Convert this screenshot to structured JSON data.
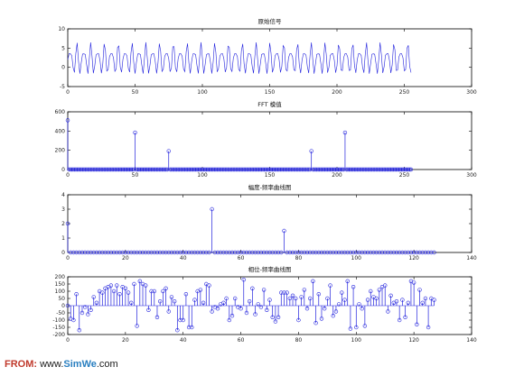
{
  "colors": {
    "signal": "#2222dd",
    "axis": "#000000",
    "frame": "#000000"
  },
  "watermark": {
    "prefix": "FROM:",
    "www": "www.",
    "site": "SimWe",
    "suffix": ".com"
  },
  "chart_data": [
    {
      "id": "p1",
      "type": "line",
      "title": "原始信号",
      "xlim": [
        0,
        300
      ],
      "ylim": [
        -5,
        10
      ],
      "xticks": [
        0,
        50,
        100,
        150,
        200,
        250,
        300
      ],
      "yticks": [
        -5,
        0,
        5,
        10
      ],
      "signal": {
        "n": 256,
        "offset": 2,
        "components": [
          {
            "amp": 3,
            "freq": 50,
            "phase": -0.5236
          },
          {
            "amp": 1.5,
            "freq": 75,
            "phase": 1.5708
          }
        ],
        "fs": 256
      }
    },
    {
      "id": "p2",
      "type": "stem",
      "title": "FFT 模值",
      "xlim": [
        0,
        300
      ],
      "ylim": [
        0,
        600
      ],
      "xticks": [
        0,
        50,
        100,
        150,
        200,
        250,
        300
      ],
      "yticks": [
        0,
        200,
        400,
        600
      ],
      "x_start": 0,
      "n": 256,
      "baseline": 0,
      "peaks": [
        {
          "x": 0,
          "y": 512
        },
        {
          "x": 50,
          "y": 384
        },
        {
          "x": 75,
          "y": 192
        },
        {
          "x": 181,
          "y": 192
        },
        {
          "x": 206,
          "y": 384
        }
      ]
    },
    {
      "id": "p3",
      "type": "stem",
      "title": "幅度-频率曲线图",
      "xlim": [
        0,
        140
      ],
      "ylim": [
        0,
        4
      ],
      "xticks": [
        0,
        20,
        40,
        60,
        80,
        100,
        120,
        140
      ],
      "yticks": [
        0,
        1,
        2,
        3,
        4
      ],
      "x_start": 0,
      "n": 128,
      "baseline": 0,
      "peaks": [
        {
          "x": 0,
          "y": 2
        },
        {
          "x": 50,
          "y": 3
        },
        {
          "x": 75,
          "y": 1.5
        }
      ]
    },
    {
      "id": "p4",
      "type": "stem",
      "title": "相位-频率曲线图",
      "xlim": [
        0,
        140
      ],
      "ylim": [
        -200,
        200
      ],
      "xticks": [
        0,
        20,
        40,
        60,
        80,
        100,
        120,
        140
      ],
      "yticks": [
        -200,
        -150,
        -100,
        -50,
        0,
        50,
        100,
        150,
        200
      ],
      "x_start": 0,
      "baseline": 0,
      "values": [
        0,
        -90,
        -100,
        80,
        -170,
        -50,
        -10,
        -60,
        -30,
        60,
        20,
        100,
        90,
        120,
        130,
        140,
        100,
        140,
        80,
        130,
        120,
        90,
        20,
        150,
        -140,
        170,
        150,
        140,
        -30,
        100,
        100,
        -80,
        30,
        100,
        120,
        -40,
        60,
        30,
        -170,
        -100,
        -100,
        80,
        -150,
        -150,
        40,
        100,
        110,
        20,
        150,
        140,
        -40,
        -10,
        -20,
        10,
        20,
        50,
        -100,
        -70,
        50,
        -10,
        -20,
        180,
        -50,
        30,
        120,
        -60,
        10,
        -10,
        110,
        -30,
        40,
        -80,
        -110,
        -80,
        90,
        90,
        90,
        50,
        70,
        50,
        -100,
        60,
        110,
        -20,
        50,
        170,
        -120,
        80,
        -90,
        -20,
        50,
        140,
        -70,
        -40,
        10,
        90,
        40,
        170,
        -160,
        130,
        -150,
        10,
        -20,
        -140,
        40,
        100,
        60,
        50,
        110,
        130,
        140,
        -40,
        70,
        20,
        30,
        -100,
        40,
        -80,
        20,
        170,
        160,
        -130,
        110,
        20,
        50,
        -150,
        50,
        40
      ]
    }
  ]
}
